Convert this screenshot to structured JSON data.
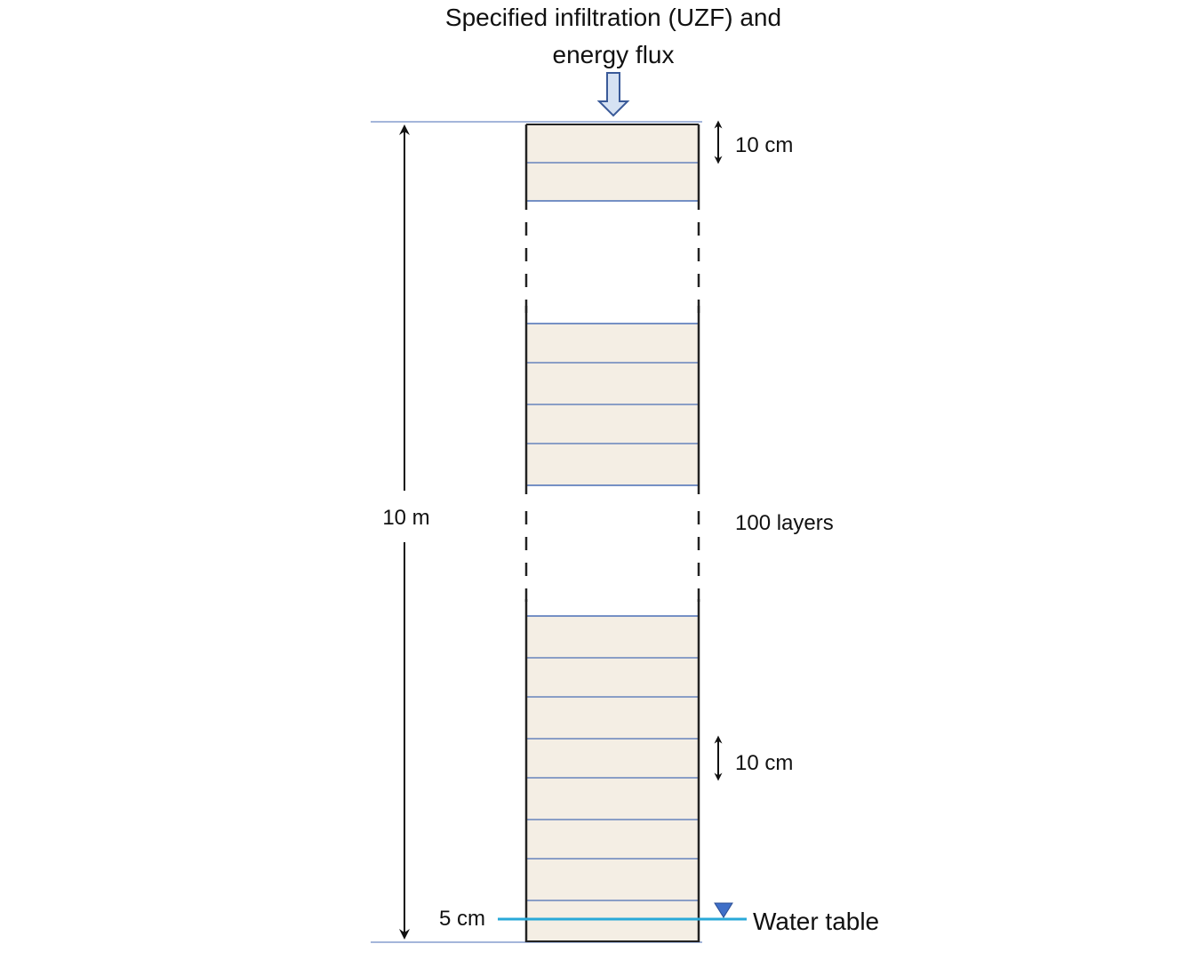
{
  "header": {
    "title_line1": "Specified infiltration (UZF) and",
    "title_line2": "energy flux"
  },
  "labels": {
    "total_depth": "10 m",
    "top_layer_thickness": "10 cm",
    "bottom_layer_thickness": "10 cm",
    "layer_count": "100 layers",
    "water_table_offset": "5 cm",
    "water_table": "Water table"
  },
  "colors": {
    "soil_fill": "#F4EEE4",
    "layer_line": "#4A6EB5",
    "column_border": "#222222",
    "water_table_line": "#29A9D8",
    "water_table_marker": "#3F6FC8",
    "arrow_fill": "#D6E2F3",
    "arrow_stroke": "#3A5A99"
  },
  "icons": {
    "flux_arrow": "down-arrow-icon",
    "water_table_marker": "inverted-triangle-icon",
    "thickness_arrows": "double-headed-arrow-icon"
  }
}
